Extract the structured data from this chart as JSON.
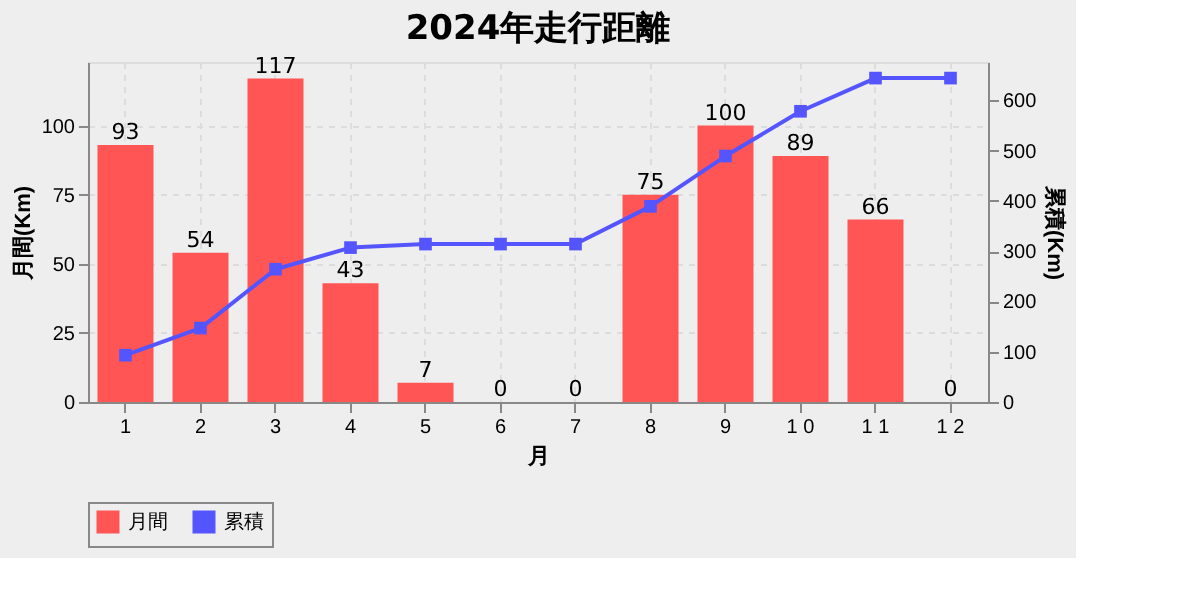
{
  "chart_data": {
    "type": "bar",
    "title": "2024年走行距離",
    "xlabel": "月",
    "ylabel": "月間(Km)",
    "y2label": "累積(Km)",
    "categories": [
      "1",
      "2",
      "3",
      "4",
      "5",
      "6",
      "7",
      "8",
      "9",
      "1 0",
      "1 1",
      "1 2"
    ],
    "series": [
      {
        "name": "月間",
        "color": "#ff5555",
        "values": [
          93,
          54,
          117,
          43,
          7,
          0,
          0,
          75,
          100,
          89,
          66,
          0
        ],
        "value_labels": [
          "93",
          "54",
          "117",
          "43",
          "7",
          "0",
          "0",
          "75",
          "100",
          "89",
          "66",
          "0"
        ]
      },
      {
        "name": "累積",
        "type": "line",
        "axis": "y2",
        "color": "#5555ff",
        "values": [
          93,
          147,
          264,
          307,
          314,
          314,
          314,
          389,
          489,
          578,
          644,
          644
        ]
      }
    ],
    "ylim": [
      0,
      123
    ],
    "yticks": [
      0,
      25,
      50,
      75,
      100
    ],
    "y2lim": [
      0,
      676
    ],
    "y2ticks": [
      0,
      100,
      200,
      300,
      400,
      500,
      600
    ],
    "grid": true,
    "legend": "bottom",
    "marker": "square",
    "line_style": "solid"
  }
}
